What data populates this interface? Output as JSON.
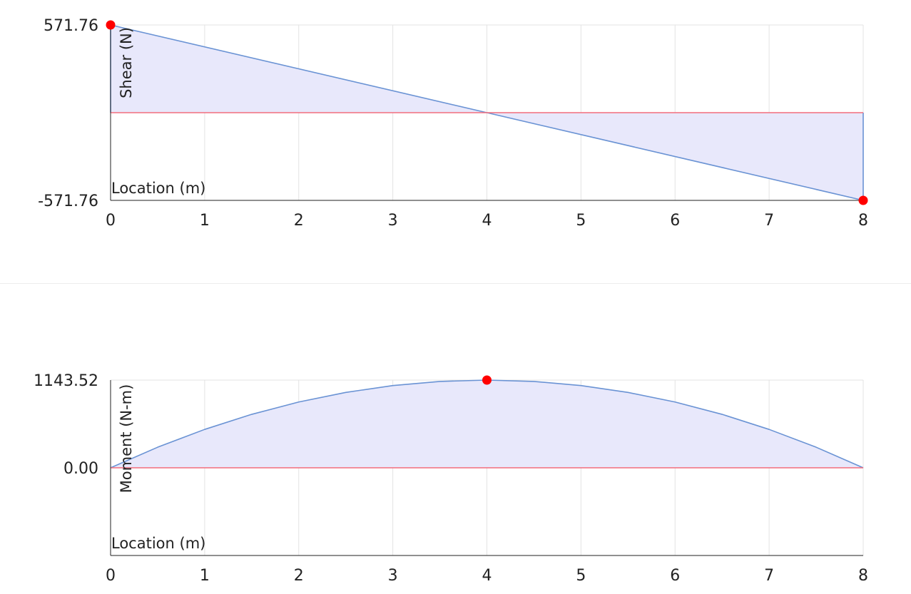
{
  "chart_data": [
    {
      "type": "area",
      "title": "",
      "xlabel": "Location (m)",
      "ylabel": "Shear (N)",
      "xlim": [
        0,
        8
      ],
      "ylim": [
        -571.76,
        571.76
      ],
      "x_ticks": [
        "0",
        "1",
        "2",
        "3",
        "4",
        "5",
        "6",
        "7",
        "8"
      ],
      "y_ticks": [
        "571.76",
        "-571.76"
      ],
      "grid": true,
      "series": [
        {
          "x": [
            0,
            0,
            4,
            8,
            8
          ],
          "values": [
            0,
            571.76,
            0,
            -571.76,
            0
          ],
          "color": "#6a93d4",
          "fill": "#e8e8fb"
        }
      ],
      "baseline": 0,
      "baseline_color": "#f26d7d",
      "markers": [
        {
          "x": 0,
          "y": 571.76,
          "color": "#ff0000"
        },
        {
          "x": 8,
          "y": -571.76,
          "color": "#ff0000"
        }
      ]
    },
    {
      "type": "area",
      "title": "",
      "xlabel": "Location (m)",
      "ylabel": "Moment (N-m)",
      "xlim": [
        0,
        8
      ],
      "ylim": [
        -1143.52,
        1143.52
      ],
      "x_ticks": [
        "0",
        "1",
        "2",
        "3",
        "4",
        "5",
        "6",
        "7",
        "8"
      ],
      "y_ticks": [
        "1143.52",
        "0.00"
      ],
      "grid": true,
      "series": [
        {
          "x": [
            0,
            0.5,
            1,
            1.5,
            2,
            2.5,
            3,
            3.5,
            4,
            4.5,
            5,
            5.5,
            6,
            6.5,
            7,
            7.5,
            8
          ],
          "values": [
            0,
            268.01,
            500.29,
            696.83,
            857.64,
            982.71,
            1072.05,
            1125.66,
            1143.52,
            1125.66,
            1072.05,
            982.71,
            857.64,
            696.83,
            500.29,
            268.01,
            0
          ],
          "color": "#6a93d4",
          "fill": "#e8e8fb"
        }
      ],
      "baseline": 0,
      "baseline_color": "#f26d7d",
      "markers": [
        {
          "x": 4,
          "y": 1143.52,
          "color": "#ff0000"
        }
      ]
    }
  ]
}
